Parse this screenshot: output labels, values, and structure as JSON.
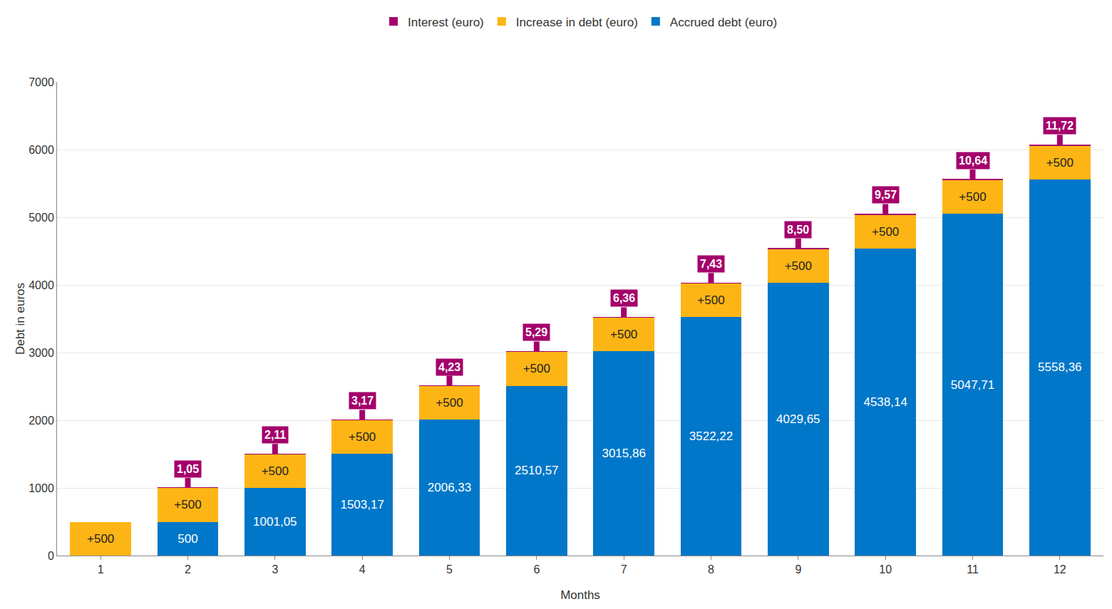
{
  "chart_data": {
    "type": "bar",
    "stacked": true,
    "data_labels": true,
    "grid": true,
    "legend": "top",
    "x_label": "Months",
    "y_label": "Debt in euros",
    "categories": [
      "1",
      "2",
      "3",
      "4",
      "5",
      "6",
      "7",
      "8",
      "9",
      "10",
      "11",
      "12"
    ],
    "ylim": [
      0,
      7000
    ],
    "yticks": [
      0,
      1000,
      2000,
      3000,
      4000,
      5000,
      6000,
      7000
    ],
    "series": [
      {
        "name": "Accrued debt (euro)",
        "color": "#0077c8",
        "values": [
          null,
          500,
          1001.05,
          1503.17,
          2006.33,
          2510.57,
          3015.86,
          3522.22,
          4029.65,
          4538.14,
          5047.71,
          5558.36
        ],
        "value_labels": [
          null,
          "500",
          "1001,05",
          "1503,17",
          "2006,33",
          "2510,57",
          "3015,86",
          "3522,22",
          "4029,65",
          "4538,14",
          "5047,71",
          "5558,36"
        ]
      },
      {
        "name": "Increase in debt (euro)",
        "color": "#fdb515",
        "values": [
          500,
          500,
          500,
          500,
          500,
          500,
          500,
          500,
          500,
          500,
          500,
          500
        ],
        "value_labels": [
          "+500",
          "+500",
          "+500",
          "+500",
          "+500",
          "+500",
          "+500",
          "+500",
          "+500",
          "+500",
          "+500",
          "+500"
        ]
      },
      {
        "name": "Interest (euro)",
        "color": "#a4006b",
        "values": [
          null,
          1.05,
          2.11,
          3.17,
          4.23,
          5.29,
          6.36,
          7.43,
          8.5,
          9.57,
          10.64,
          11.72
        ],
        "value_labels": [
          null,
          "1,05",
          "2,11",
          "3,17",
          "4,23",
          "5,29",
          "6,36",
          "7,43",
          "8,50",
          "9,57",
          "10,64",
          "11,72"
        ]
      }
    ]
  }
}
